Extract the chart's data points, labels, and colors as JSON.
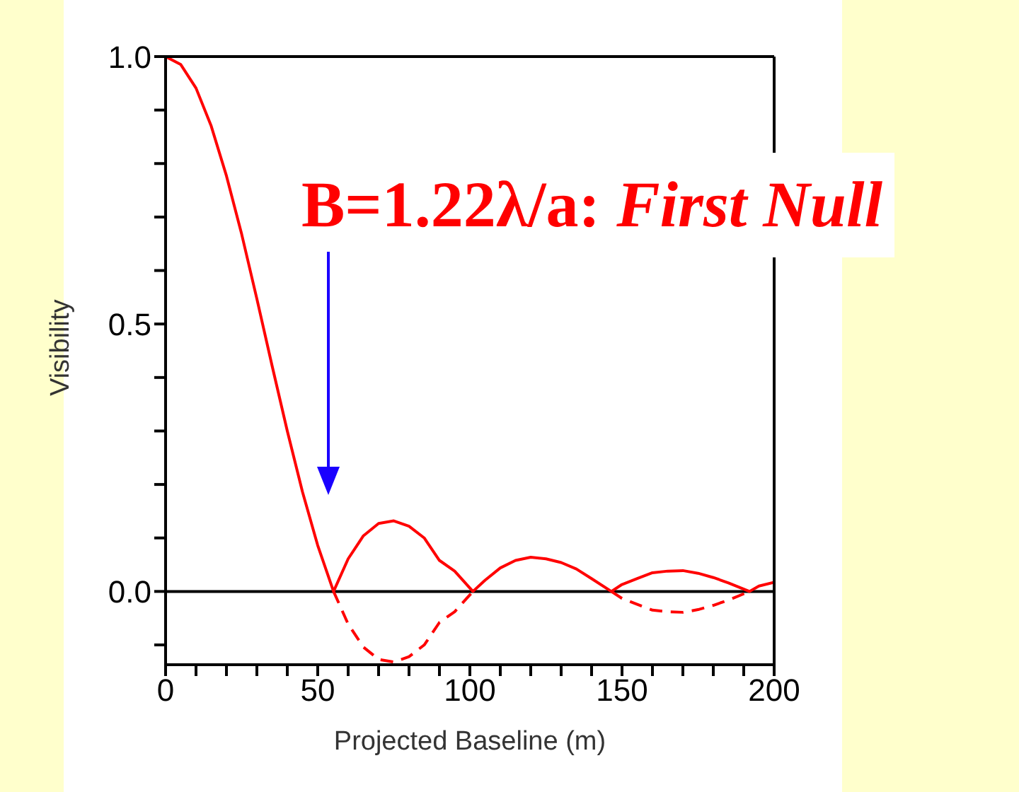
{
  "chart_data": {
    "type": "line",
    "xlabel": "Projected Baseline (m)",
    "ylabel": "Visibility",
    "annotations": [
      "B=1.22λ/a: First Null"
    ],
    "x": [
      0,
      5,
      10,
      15,
      20,
      25,
      30,
      35,
      40,
      45,
      50,
      55.2,
      60,
      65,
      70,
      75,
      80,
      85,
      90,
      95,
      101,
      105,
      110,
      115,
      120,
      125,
      130,
      135,
      140,
      146.5,
      150,
      155,
      160,
      165,
      170,
      175,
      180,
      185,
      191.9,
      195,
      200
    ],
    "series": [
      {
        "color": "#ff0000",
        "line_style": "solid",
        "values": [
          1,
          0.985,
          0.941,
          0.87,
          0.777,
          0.668,
          0.547,
          0.422,
          0.3,
          0.186,
          0.086,
          0,
          0.061,
          0.104,
          0.127,
          0.132,
          0.122,
          0.1,
          0.058,
          0.038,
          0,
          0.021,
          0.044,
          0.058,
          0.064,
          0.061,
          0.054,
          0.042,
          0.024,
          0,
          0.013,
          0.024,
          0.035,
          0.038,
          0.039,
          0.034,
          0.026,
          0.016,
          0,
          0.01,
          0.017
        ]
      },
      {
        "color": "#ff0000",
        "line_style": "dashed",
        "values": [
          null,
          null,
          null,
          null,
          null,
          null,
          null,
          null,
          null,
          null,
          null,
          0,
          -0.061,
          -0.104,
          -0.127,
          -0.132,
          -0.122,
          -0.1,
          -0.058,
          -0.038,
          0,
          null,
          null,
          null,
          null,
          null,
          null,
          null,
          null,
          0,
          -0.013,
          -0.024,
          -0.035,
          -0.038,
          -0.039,
          -0.034,
          -0.026,
          -0.016,
          0,
          null,
          null
        ]
      }
    ],
    "xlim": [
      0,
      200
    ],
    "xticks": [
      0,
      {
        "value": 10,
        "label": null
      },
      {
        "value": 20,
        "label": null
      },
      {
        "value": 30,
        "label": null
      },
      {
        "value": 40,
        "label": null
      },
      50,
      {
        "value": 60,
        "label": null
      },
      {
        "value": 70,
        "label": null
      },
      {
        "value": 80,
        "label": null
      },
      {
        "value": 90,
        "label": null
      },
      100,
      {
        "value": 110,
        "label": null
      },
      {
        "value": 120,
        "label": null
      },
      {
        "value": 130,
        "label": null
      },
      {
        "value": 140,
        "label": null
      },
      150,
      {
        "value": 160,
        "label": null
      },
      {
        "value": 170,
        "label": null
      },
      {
        "value": 180,
        "label": null
      },
      {
        "value": 190,
        "label": null
      },
      200
    ],
    "ylim": [
      -0.137,
      1.0
    ],
    "yticks": [
      {
        "value": -0.1,
        "label": null
      },
      {
        "value": 0,
        "label": "0.0"
      },
      {
        "value": 0.1,
        "label": null
      },
      {
        "value": 0.2,
        "label": null
      },
      {
        "value": 0.3,
        "label": null
      },
      {
        "value": 0.4,
        "label": null
      },
      {
        "value": 0.5,
        "label": "0.5"
      },
      {
        "value": 0.6,
        "label": null
      },
      {
        "value": 0.7,
        "label": null
      },
      {
        "value": 0.8,
        "label": null
      },
      {
        "value": 0.9,
        "label": null
      },
      {
        "value": 1.0,
        "label": "1.0"
      }
    ],
    "ref_lines": [
      {
        "axis": "y",
        "value": 0,
        "color": "#000000"
      }
    ],
    "grid": false
  }
}
